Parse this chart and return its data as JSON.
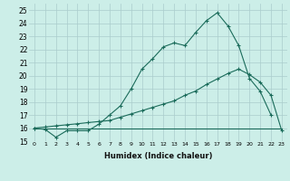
{
  "xlabel": "Humidex (Indice chaleur)",
  "bg_color": "#cceee8",
  "grid_color": "#aacccc",
  "line_color": "#1a6b5a",
  "xlim": [
    -0.5,
    23.5
  ],
  "ylim": [
    15,
    25.5
  ],
  "xtick_labels": [
    "0",
    "1",
    "2",
    "3",
    "4",
    "5",
    "6",
    "7",
    "8",
    "9",
    "10",
    "11",
    "12",
    "13",
    "14",
    "15",
    "16",
    "17",
    "18",
    "19",
    "20",
    "21",
    "22",
    "23"
  ],
  "ytick_labels": [
    "15",
    "16",
    "17",
    "18",
    "19",
    "20",
    "21",
    "22",
    "23",
    "24",
    "25"
  ],
  "line1_x": [
    0,
    1,
    2,
    3,
    4,
    5,
    6,
    7,
    8,
    9,
    10,
    11,
    12,
    13,
    14,
    15,
    16,
    17,
    18,
    19,
    20,
    21,
    22
  ],
  "line1_y": [
    16.0,
    15.9,
    15.3,
    15.8,
    15.8,
    15.8,
    16.3,
    17.0,
    17.7,
    19.0,
    20.5,
    21.3,
    22.2,
    22.5,
    22.3,
    23.3,
    24.2,
    24.8,
    23.8,
    22.3,
    19.8,
    18.8,
    17.0
  ],
  "line2_x": [
    0,
    1,
    2,
    3,
    4,
    5,
    6,
    7,
    8,
    9,
    10,
    11,
    12,
    13,
    14,
    15,
    16,
    17,
    18,
    19,
    20,
    21,
    22,
    23
  ],
  "line2_y": [
    16.0,
    16.08,
    16.17,
    16.25,
    16.33,
    16.42,
    16.5,
    16.58,
    16.83,
    17.08,
    17.33,
    17.58,
    17.83,
    18.08,
    18.5,
    18.83,
    19.33,
    19.75,
    20.17,
    20.5,
    20.08,
    19.5,
    18.5,
    15.8
  ],
  "line3_x": [
    0,
    23
  ],
  "line3_y": [
    16.0,
    16.0
  ]
}
